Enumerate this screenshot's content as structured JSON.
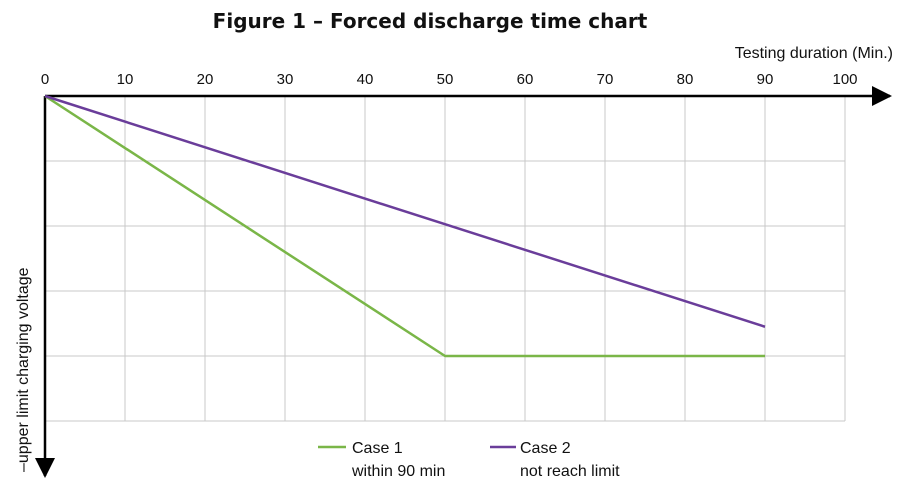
{
  "chart_data": {
    "type": "line",
    "title": "Figure 1 – Forced discharge time chart",
    "xlabel": "Testing duration  (Min.)",
    "ylabel": "–upper limit charging voltage",
    "xlim": [
      0,
      100
    ],
    "x_ticks": [
      0,
      10,
      20,
      30,
      40,
      50,
      60,
      70,
      80,
      90,
      100
    ],
    "x_tick_labels": [
      "0",
      "10",
      "20",
      "30",
      "40",
      "50",
      "60",
      "70",
      "80",
      "90",
      "100"
    ],
    "y_gridlines": 5,
    "ylim": [
      0,
      -5
    ],
    "grid": true,
    "legend_position": "bottom",
    "series": [
      {
        "name": "Case 1",
        "description": "within 90 min",
        "color": "#7ab648",
        "x": [
          0,
          50,
          90
        ],
        "y": [
          0,
          -4,
          -4
        ]
      },
      {
        "name": "Case 2",
        "description": "not reach limit",
        "color": "#6a3d9a",
        "x": [
          0,
          90
        ],
        "y": [
          0,
          -3.55
        ]
      }
    ]
  }
}
